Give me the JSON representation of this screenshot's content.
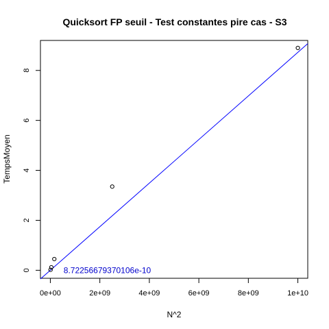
{
  "chart_data": {
    "type": "scatter",
    "title": "Quicksort FP seuil - Test constantes pire cas - S3",
    "xlabel": "N^2",
    "ylabel": "TempsMoyen",
    "xlim": [
      -400000000,
      10400000000
    ],
    "ylim": [
      -0.32,
      9.2
    ],
    "x_ticks": [
      0,
      2000000000,
      4000000000,
      6000000000,
      8000000000,
      10000000000
    ],
    "x_tick_labels": [
      "0e+00",
      "2e+09",
      "4e+09",
      "6e+09",
      "8e+09",
      "1e+10"
    ],
    "y_ticks": [
      0,
      2,
      4,
      6,
      8
    ],
    "y_tick_labels": [
      "0",
      "2",
      "4",
      "6",
      "8"
    ],
    "points": [
      {
        "x": 10000000,
        "y": 0.02
      },
      {
        "x": 40000000,
        "y": 0.12
      },
      {
        "x": 160000000,
        "y": 0.45
      },
      {
        "x": 2500000000,
        "y": 3.35
      },
      {
        "x": 10000000000,
        "y": 8.9
      }
    ],
    "regression_line": {
      "slope": 8.72256679370106e-10,
      "intercept": 0.0,
      "color": "#0000ff"
    },
    "annotation": {
      "text": "8.72256679370106e-10",
      "x": 2300000000,
      "y": 0.0,
      "color": "#0000cc"
    },
    "grid": false,
    "colors": {
      "points": "#000000",
      "axes": "#000000",
      "line": "#0000ff"
    }
  }
}
